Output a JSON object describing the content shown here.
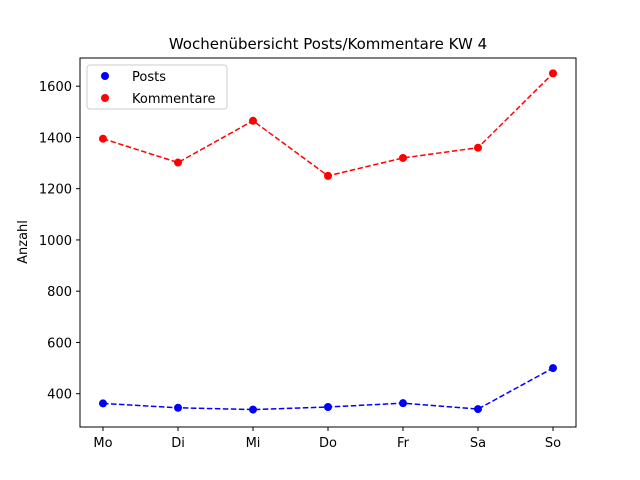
{
  "chart_data": {
    "type": "line",
    "title": "Wochenübersicht Posts/Kommentare KW 4",
    "xlabel": "",
    "ylabel": "Anzahl",
    "categories": [
      "Mo",
      "Di",
      "Mi",
      "Do",
      "Fr",
      "Sa",
      "So"
    ],
    "series": [
      {
        "name": "Posts",
        "color": "#0000ff",
        "line_style": "dashed",
        "marker": "circle",
        "values": [
          362,
          345,
          338,
          348,
          363,
          340,
          500
        ]
      },
      {
        "name": "Kommentare",
        "color": "#ff0000",
        "line_style": "dashed",
        "marker": "circle",
        "values": [
          1395,
          1302,
          1465,
          1250,
          1320,
          1360,
          1650
        ]
      }
    ],
    "ylim": [
      270,
      1710
    ],
    "yticks": [
      400,
      600,
      800,
      1000,
      1200,
      1400,
      1600
    ],
    "grid": false,
    "legend_position": "top-left"
  }
}
